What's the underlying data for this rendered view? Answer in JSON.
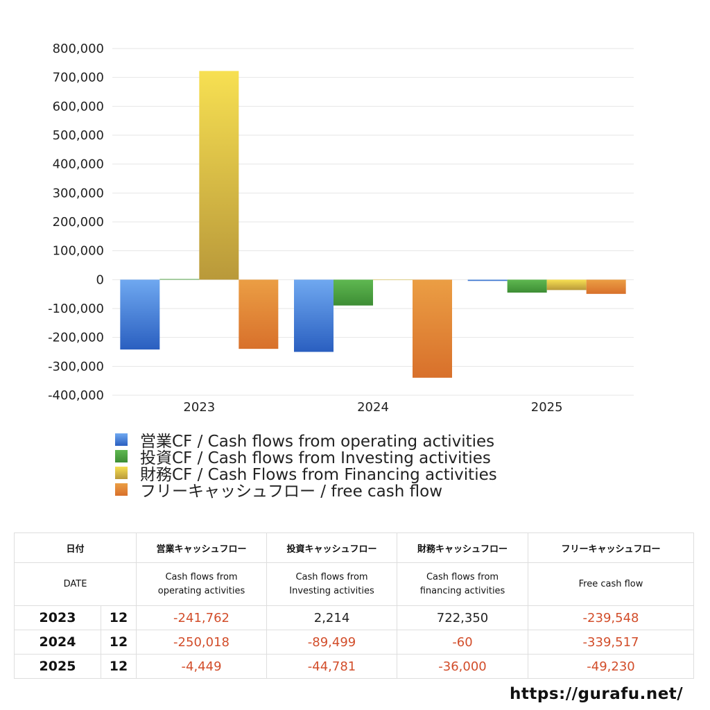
{
  "chart_data": {
    "type": "bar",
    "categories": [
      "2023",
      "2024",
      "2025"
    ],
    "ylim": [
      -400000,
      800000
    ],
    "yticks": [
      800000,
      700000,
      600000,
      500000,
      400000,
      300000,
      200000,
      100000,
      0,
      -100000,
      -200000,
      -300000,
      -400000
    ],
    "ytick_labels": [
      "800,000",
      "700,000",
      "600,000",
      "500,000",
      "400,000",
      "300,000",
      "200,000",
      "100,000",
      "0",
      "-100,000",
      "-200,000",
      "-300,000",
      "-400,000"
    ],
    "grid": true,
    "legend_position": "bottom",
    "series": [
      {
        "name": "営業CF / Cash flows from operating activities",
        "values": [
          -241762,
          -250018,
          -4449
        ],
        "color_top": "#6fa8f0",
        "color_bottom": "#2a5fc0"
      },
      {
        "name": "投資CF / Cash flows from Investing activities",
        "values": [
          2214,
          -89499,
          -44781
        ],
        "color_top": "#5fb851",
        "color_bottom": "#3d8d34"
      },
      {
        "name": "財務CF / Cash Flows from Financing activities",
        "values": [
          722350,
          -60,
          -36000
        ],
        "color_top": "#f7e052",
        "color_bottom": "#b9993a"
      },
      {
        "name": "フリーキャッシュフロー / free cash flow",
        "values": [
          -239548,
          -339517,
          -49230
        ],
        "color_top": "#eb9e44",
        "color_bottom": "#d8702b"
      }
    ]
  },
  "table": {
    "headers_jp": [
      "日付",
      "営業キャッシュフロー",
      "投資キャッシュフロー",
      "財務キャッシュフロー",
      "フリーキャッシュフロー"
    ],
    "headers_en": {
      "date": "DATE",
      "operating": [
        "Cash flows from",
        "operating activities"
      ],
      "investing": [
        "Cash flows from",
        "Investing activities"
      ],
      "financing": [
        "Cash flows from",
        "financing activities"
      ],
      "free": "Free cash flow"
    },
    "rows": [
      {
        "year": "2023",
        "month": "12",
        "operating": "-241,762",
        "investing": "2,214",
        "financing": "722,350",
        "free": "-239,548"
      },
      {
        "year": "2024",
        "month": "12",
        "operating": "-250,018",
        "investing": "-89,499",
        "financing": "-60",
        "free": "-339,517"
      },
      {
        "year": "2025",
        "month": "12",
        "operating": "-4,449",
        "investing": "-44,781",
        "financing": "-36,000",
        "free": "-49,230"
      }
    ]
  },
  "watermark": "https://gurafu.net/"
}
